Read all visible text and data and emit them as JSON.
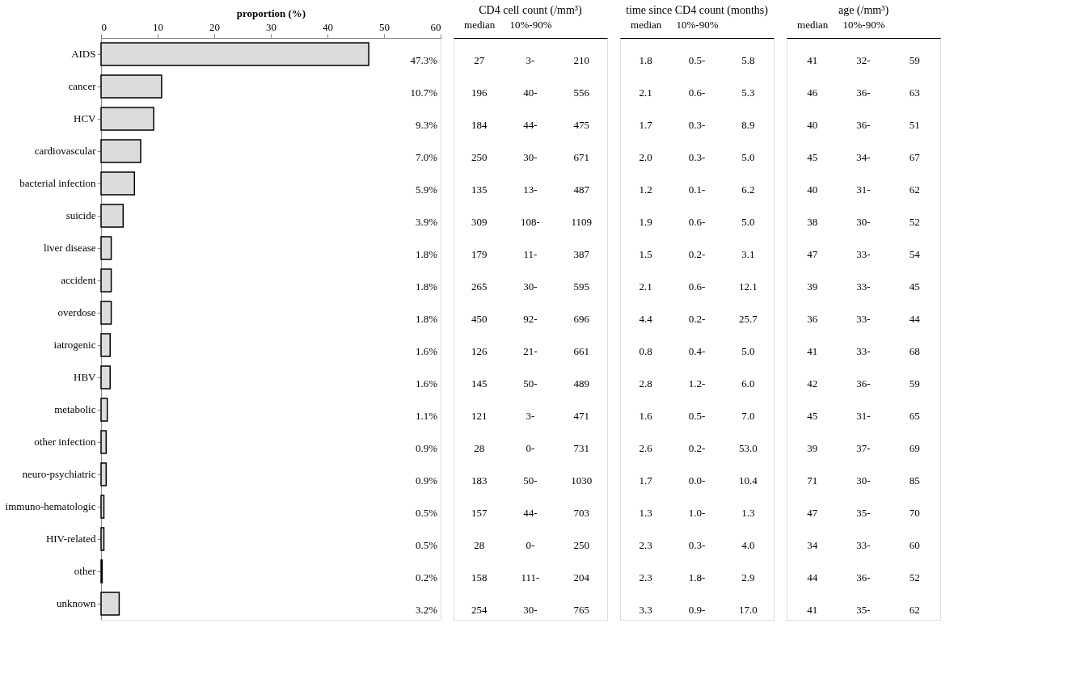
{
  "chart_data": [
    {
      "type": "bar",
      "orientation": "horizontal",
      "xlabel": "proportion (%)",
      "xlim": [
        0,
        60
      ],
      "xticks": [
        0,
        10,
        20,
        30,
        40,
        50,
        60
      ],
      "color": "#dcdcdc",
      "grid": false,
      "categories": [
        "AIDS",
        "cancer",
        "HCV",
        "cardiovascular",
        "bacterial infection",
        "suicide",
        "liver disease",
        "accident",
        "overdose",
        "iatrogenic",
        "HBV",
        "metabolic",
        "other infection",
        "neuro-psychiatric",
        "immuno-hematologic",
        "HIV-related",
        "other",
        "unknown"
      ],
      "values": [
        47.3,
        10.7,
        9.3,
        7.0,
        5.9,
        3.9,
        1.8,
        1.8,
        1.8,
        1.6,
        1.6,
        1.1,
        0.9,
        0.9,
        0.5,
        0.5,
        0.2,
        3.2
      ],
      "value_labels": [
        "47.3%",
        "10.7%",
        "9.3%",
        "7.0%",
        "5.9%",
        "3.9%",
        "1.8%",
        "1.8%",
        "1.8%",
        "1.6%",
        "1.6%",
        "1.1%",
        "0.9%",
        "0.9%",
        "0.5%",
        "0.5%",
        "0.2%",
        "3.2%"
      ]
    },
    {
      "type": "other",
      "title": "CD4 cell count (/mm³)",
      "categories": [
        "median",
        "10%-90%",
        null
      ],
      "annotations": [
        "27",
        "3-",
        "210",
        "196",
        "40-",
        "556",
        "184",
        "44-",
        "475",
        "250",
        "30-",
        "671",
        "135",
        "13-",
        "487",
        "309",
        "108-",
        "1109",
        "179",
        "11-",
        "387",
        "265",
        "30-",
        "595",
        "450",
        "92-",
        "696",
        "126",
        "21-",
        "661",
        "145",
        "50-",
        "489",
        "121",
        "3-",
        "471",
        "28",
        "0-",
        "731",
        "183",
        "50-",
        "1030",
        "157",
        "44-",
        "703",
        "28",
        "0-",
        "250",
        "158",
        "111-",
        "204",
        "254",
        "30-",
        "765"
      ]
    },
    {
      "type": "other",
      "title": "time since CD4 count (months)",
      "categories": [
        "median",
        "10%-90%",
        null
      ],
      "annotations": [
        "1.8",
        "0.5-",
        "5.8",
        "2.1",
        "0.6-",
        "5.3",
        "1.7",
        "0.3-",
        "8.9",
        "2.0",
        "0.3-",
        "5.0",
        "1.2",
        "0.1-",
        "6.2",
        "1.9",
        "0.6-",
        "5.0",
        "1.5",
        "0.2-",
        "3.1",
        "2.1",
        "0.6-",
        "12.1",
        "4.4",
        "0.2-",
        "25.7",
        "0.8",
        "0.4-",
        "5.0",
        "2.8",
        "1.2-",
        "6.0",
        "1.6",
        "0.5-",
        "7.0",
        "2.6",
        "0.2-",
        "53.0",
        "1.7",
        "0.0-",
        "10.4",
        "1.3",
        "1.0-",
        "1.3",
        "2.3",
        "0.3-",
        "4.0",
        "2.3",
        "1.8-",
        "2.9",
        "3.3",
        "0.9-",
        "17.0"
      ]
    },
    {
      "type": "other",
      "title": "age (/mm³)",
      "categories": [
        "median",
        "10%-90%",
        null
      ],
      "annotations": [
        "41",
        "32-",
        "59",
        "46",
        "36-",
        "63",
        "40",
        "36-",
        "51",
        "45",
        "34-",
        "67",
        "40",
        "31-",
        "62",
        "38",
        "30-",
        "52",
        "47",
        "33-",
        "54",
        "39",
        "33-",
        "45",
        "36",
        "33-",
        "44",
        "41",
        "33-",
        "68",
        "42",
        "36-",
        "59",
        "45",
        "31-",
        "65",
        "39",
        "37-",
        "69",
        "71",
        "30-",
        "85",
        "47",
        "35-",
        "70",
        "34",
        "33-",
        "60",
        "44",
        "36-",
        "52",
        "41",
        "35-",
        "62"
      ]
    }
  ]
}
